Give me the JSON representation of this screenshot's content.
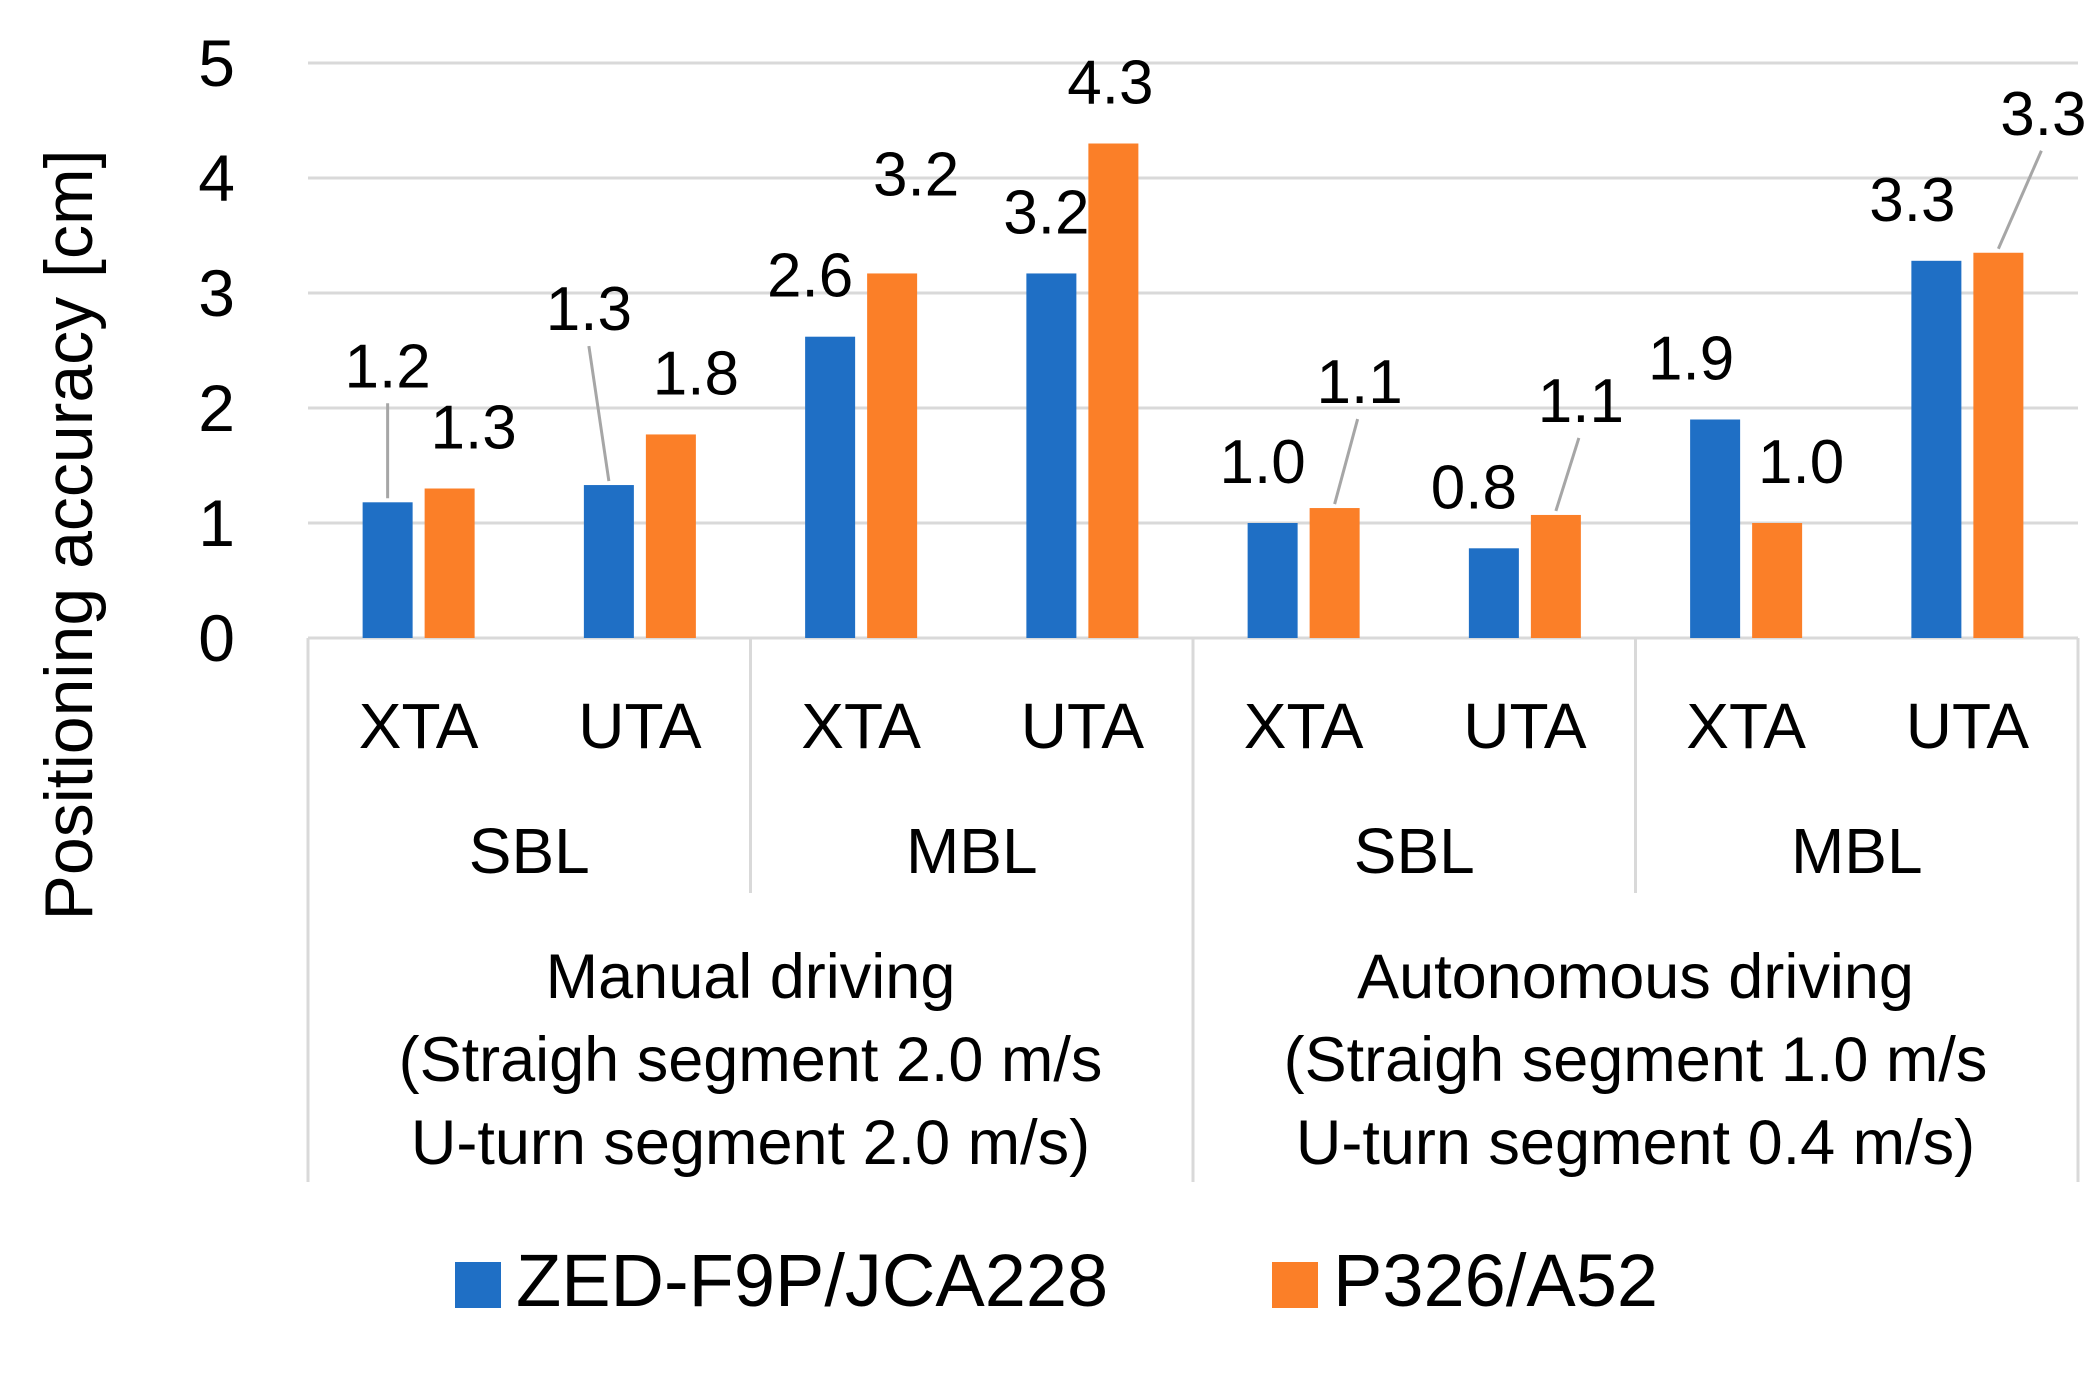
{
  "chart_data": {
    "type": "bar",
    "ylabel": "Positioning accuracy [cm]",
    "ylim": [
      0,
      5
    ],
    "yticks": [
      "0",
      "1",
      "2",
      "3",
      "4",
      "5"
    ],
    "grid": true,
    "legend_position": "bottom",
    "categories": [
      "XTA",
      "UTA",
      "XTA",
      "UTA",
      "XTA",
      "UTA",
      "XTA",
      "UTA"
    ],
    "category_groups": [
      "SBL",
      "MBL",
      "SBL",
      "MBL"
    ],
    "top_groups": [
      {
        "lines": [
          "Manual driving",
          "(Straigh segment 2.0 m/s",
          "U-turn segment 2.0 m/s)"
        ]
      },
      {
        "lines": [
          "Autonomous driving",
          "(Straigh segment 1.0 m/s",
          "U-turn segment 0.4 m/s)"
        ]
      }
    ],
    "series": [
      {
        "name": "ZED-F9P/JCA228",
        "color": "#1f6fc5",
        "values": [
          1.18,
          1.33,
          2.62,
          3.17,
          1.0,
          0.78,
          1.9,
          3.28
        ],
        "labels": [
          "1.2",
          "1.3",
          "2.6",
          "3.2",
          "1.0",
          "0.8",
          "1.9",
          "3.3"
        ]
      },
      {
        "name": "P326/A52",
        "color": "#fb7f28",
        "values": [
          1.3,
          1.77,
          3.17,
          4.3,
          1.13,
          1.07,
          1.0,
          3.35
        ],
        "labels": [
          "1.3",
          "1.8",
          "3.2",
          "4.3",
          "1.1",
          "1.1",
          "1.0",
          "3.3"
        ]
      }
    ]
  }
}
